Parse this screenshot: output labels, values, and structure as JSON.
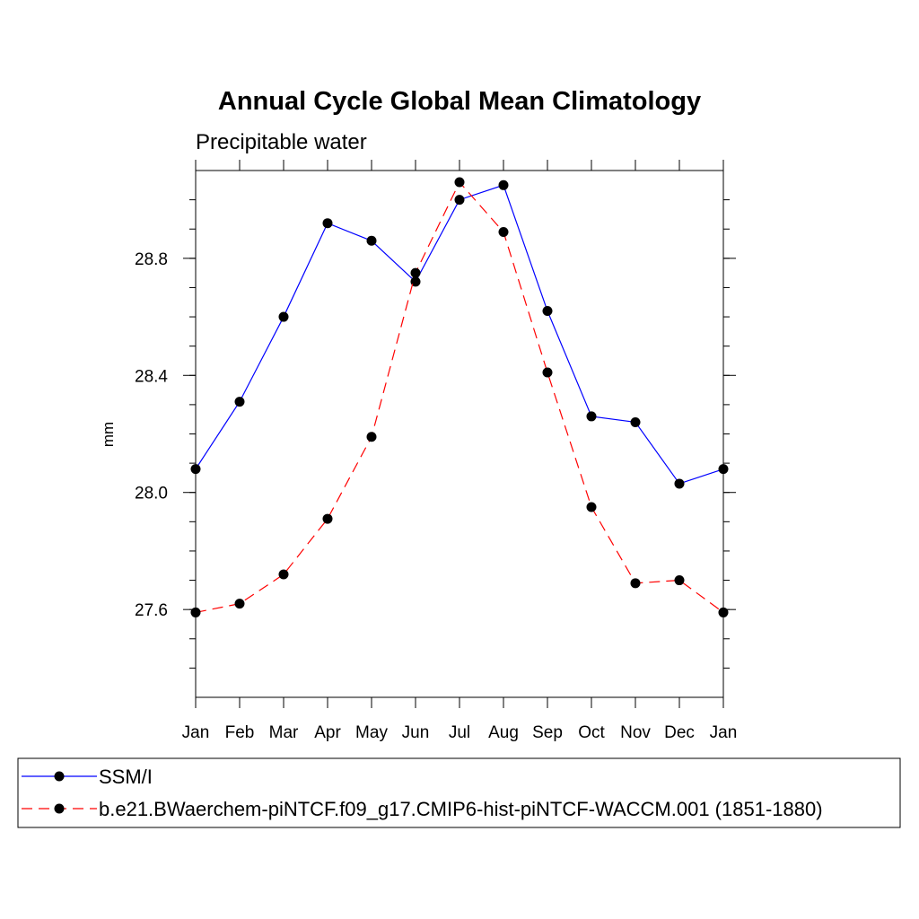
{
  "chart_data": {
    "type": "line",
    "title": "Annual Cycle Global Mean Climatology",
    "subtitle": "Precipitable water",
    "xlabel": "",
    "ylabel": "mm",
    "categories": [
      "Jan",
      "Feb",
      "Mar",
      "Apr",
      "May",
      "Jun",
      "Jul",
      "Aug",
      "Sep",
      "Oct",
      "Nov",
      "Dec",
      "Jan"
    ],
    "ylim": [
      27.3,
      29.1
    ],
    "yticks": [
      27.6,
      28.0,
      28.4,
      28.8
    ],
    "ytick_labels": [
      "27.6",
      "28.0",
      "28.4",
      "28.8"
    ],
    "y_minor_step": 0.1,
    "grid": false,
    "legend_position": "bottom",
    "series": [
      {
        "name": "SSM/I",
        "color": "#0000ff",
        "line_style": "solid",
        "marker": "filled-circle",
        "values": [
          28.08,
          28.31,
          28.6,
          28.92,
          28.86,
          28.72,
          29.0,
          29.05,
          28.62,
          28.26,
          28.24,
          28.03,
          28.08
        ]
      },
      {
        "name": "b.e21.BWaerchem-piNTCF.f09_g17.CMIP6-hist-piNTCF-WACCM.001 (1851-1880)",
        "color": "#ff0000",
        "line_style": "dashed",
        "marker": "filled-circle",
        "values": [
          27.59,
          27.62,
          27.72,
          27.91,
          28.19,
          28.75,
          29.06,
          28.89,
          28.41,
          27.95,
          27.69,
          27.7,
          27.59
        ]
      }
    ]
  }
}
